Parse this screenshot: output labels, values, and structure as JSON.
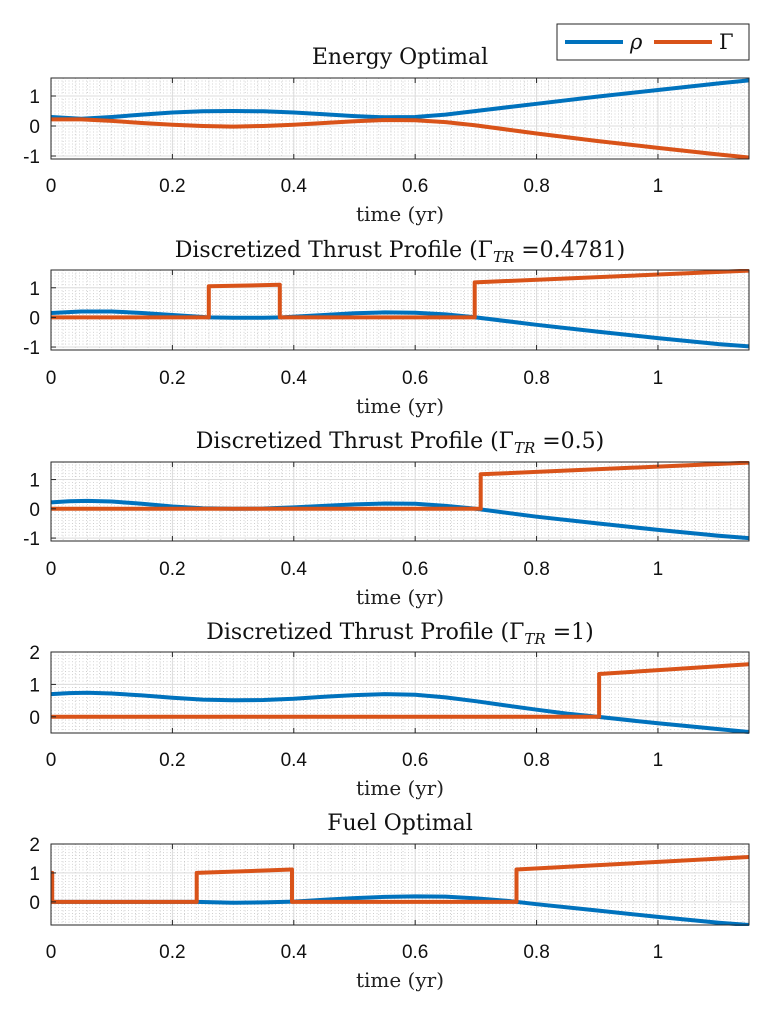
{
  "legend": {
    "entries": [
      {
        "label": "ρ",
        "color": "#0072BD"
      },
      {
        "label": "Γ",
        "color": "#D95319"
      }
    ]
  },
  "chart_data": [
    {
      "type": "line",
      "title": "Energy Optimal",
      "title_main": "Energy Optimal",
      "title_sub": "",
      "title_tail": "",
      "xlabel": "time (yr)",
      "xlim": [
        0,
        1.15
      ],
      "ylim": [
        -1.1,
        1.6
      ],
      "xticks": [
        0,
        0.2,
        0.4,
        0.6,
        0.8,
        1
      ],
      "xtick_labels": [
        "0",
        "0.2",
        "0.4",
        "0.6",
        "0.8",
        "1"
      ],
      "yticks": [
        -1,
        0,
        1
      ],
      "ytick_labels": [
        "-1",
        "0",
        "1"
      ],
      "series": [
        {
          "name": "ρ",
          "color": "#0072BD",
          "x": [
            0,
            0.05,
            0.1,
            0.15,
            0.2,
            0.25,
            0.3,
            0.35,
            0.4,
            0.45,
            0.5,
            0.55,
            0.6,
            0.65,
            0.7,
            0.8,
            0.9,
            1.0,
            1.1,
            1.15
          ],
          "y": [
            0.3,
            0.24,
            0.3,
            0.38,
            0.45,
            0.49,
            0.5,
            0.49,
            0.45,
            0.39,
            0.33,
            0.29,
            0.3,
            0.38,
            0.5,
            0.74,
            0.98,
            1.2,
            1.42,
            1.52
          ]
        },
        {
          "name": "Γ",
          "color": "#D95319",
          "x": [
            0,
            0.05,
            0.1,
            0.15,
            0.2,
            0.25,
            0.3,
            0.35,
            0.4,
            0.45,
            0.5,
            0.55,
            0.6,
            0.65,
            0.7,
            0.8,
            0.9,
            1.0,
            1.1,
            1.15
          ],
          "y": [
            0.22,
            0.22,
            0.17,
            0.1,
            0.04,
            0.0,
            -0.02,
            0.0,
            0.04,
            0.1,
            0.16,
            0.2,
            0.19,
            0.13,
            0.02,
            -0.25,
            -0.5,
            -0.73,
            -0.95,
            -1.05
          ]
        }
      ]
    },
    {
      "type": "line",
      "title": "Discretized Thrust Profile (ΓTR =0.4781)",
      "title_main": "Discretized Thrust Profile (Γ",
      "title_sub": "TR",
      "title_tail": " =0.4781)",
      "xlabel": "time (yr)",
      "xlim": [
        0,
        1.15
      ],
      "ylim": [
        -1.1,
        1.6
      ],
      "xticks": [
        0,
        0.2,
        0.4,
        0.6,
        0.8,
        1
      ],
      "xtick_labels": [
        "0",
        "0.2",
        "0.4",
        "0.6",
        "0.8",
        "1"
      ],
      "yticks": [
        -1,
        0,
        1
      ],
      "ytick_labels": [
        "-1",
        "0",
        "1"
      ],
      "series": [
        {
          "name": "ρ",
          "color": "#0072BD",
          "x": [
            0,
            0.05,
            0.1,
            0.15,
            0.2,
            0.26,
            0.3,
            0.35,
            0.38,
            0.45,
            0.5,
            0.55,
            0.6,
            0.65,
            0.7,
            0.8,
            0.9,
            1.0,
            1.1,
            1.15
          ],
          "y": [
            0.15,
            0.2,
            0.2,
            0.15,
            0.08,
            0.0,
            -0.01,
            -0.01,
            0.0,
            0.08,
            0.14,
            0.17,
            0.16,
            0.1,
            0.0,
            -0.25,
            -0.48,
            -0.7,
            -0.9,
            -0.98
          ]
        },
        {
          "name": "Γ",
          "color": "#D95319",
          "x": [
            0,
            0.26,
            0.26,
            0.377,
            0.377,
            0.698,
            0.698,
            1.15
          ],
          "y": [
            0,
            0,
            1.05,
            1.1,
            0,
            0,
            1.18,
            1.58
          ]
        }
      ]
    },
    {
      "type": "line",
      "title": "Discretized Thrust Profile (ΓTR =0.5)",
      "title_main": "Discretized Thrust Profile (Γ",
      "title_sub": "TR",
      "title_tail": " =0.5)",
      "xlabel": "time (yr)",
      "xlim": [
        0,
        1.15
      ],
      "ylim": [
        -1.1,
        1.6
      ],
      "xticks": [
        0,
        0.2,
        0.4,
        0.6,
        0.8,
        1
      ],
      "xtick_labels": [
        "0",
        "0.2",
        "0.4",
        "0.6",
        "0.8",
        "1"
      ],
      "yticks": [
        -1,
        0,
        1
      ],
      "ytick_labels": [
        "-1",
        "0",
        "1"
      ],
      "series": [
        {
          "name": "ρ",
          "color": "#0072BD",
          "x": [
            0,
            0.03,
            0.06,
            0.1,
            0.15,
            0.2,
            0.25,
            0.3,
            0.35,
            0.4,
            0.45,
            0.5,
            0.55,
            0.6,
            0.65,
            0.7,
            0.8,
            0.9,
            1.0,
            1.1,
            1.15
          ],
          "y": [
            0.22,
            0.26,
            0.27,
            0.25,
            0.17,
            0.08,
            0.02,
            0.0,
            0.01,
            0.05,
            0.1,
            0.15,
            0.18,
            0.17,
            0.1,
            0.0,
            -0.27,
            -0.5,
            -0.72,
            -0.92,
            -1.0
          ]
        },
        {
          "name": "Γ",
          "color": "#D95319",
          "x": [
            0,
            0.708,
            0.708,
            1.15
          ],
          "y": [
            0,
            0,
            1.18,
            1.58
          ]
        }
      ]
    },
    {
      "type": "line",
      "title": "Discretized Thrust Profile (ΓTR =1)",
      "title_main": "Discretized Thrust Profile (Γ",
      "title_sub": "TR",
      "title_tail": " =1)",
      "xlabel": "time (yr)",
      "xlim": [
        0,
        1.15
      ],
      "ylim": [
        -0.5,
        2.0
      ],
      "xticks": [
        0,
        0.2,
        0.4,
        0.6,
        0.8,
        1
      ],
      "xtick_labels": [
        "0",
        "0.2",
        "0.4",
        "0.6",
        "0.8",
        "1"
      ],
      "yticks": [
        0,
        1,
        2
      ],
      "ytick_labels": [
        "0",
        "1",
        "2"
      ],
      "series": [
        {
          "name": "ρ",
          "color": "#0072BD",
          "x": [
            0,
            0.03,
            0.06,
            0.1,
            0.15,
            0.2,
            0.25,
            0.3,
            0.35,
            0.4,
            0.45,
            0.5,
            0.55,
            0.6,
            0.65,
            0.7,
            0.75,
            0.8,
            0.85,
            0.9,
            1.0,
            1.1,
            1.15
          ],
          "y": [
            0.7,
            0.73,
            0.74,
            0.72,
            0.66,
            0.59,
            0.53,
            0.51,
            0.52,
            0.56,
            0.62,
            0.67,
            0.7,
            0.68,
            0.6,
            0.48,
            0.35,
            0.22,
            0.1,
            0.0,
            -0.2,
            -0.38,
            -0.47
          ]
        },
        {
          "name": "Γ",
          "color": "#D95319",
          "x": [
            0,
            0.903,
            0.903,
            1.15
          ],
          "y": [
            0,
            0,
            1.32,
            1.62
          ]
        }
      ]
    },
    {
      "type": "line",
      "title": "Fuel Optimal",
      "title_main": "Fuel Optimal",
      "title_sub": "",
      "title_tail": "",
      "xlabel": "time (yr)",
      "xlim": [
        0,
        1.15
      ],
      "ylim": [
        -0.8,
        2.0
      ],
      "xticks": [
        0,
        0.2,
        0.4,
        0.6,
        0.8,
        1
      ],
      "xtick_labels": [
        "0",
        "0.2",
        "0.4",
        "0.6",
        "0.8",
        "1"
      ],
      "yticks": [
        0,
        1,
        2
      ],
      "ytick_labels": [
        "0",
        "1",
        "2"
      ],
      "series": [
        {
          "name": "ρ",
          "color": "#0072BD",
          "x": [
            0,
            0.05,
            0.1,
            0.15,
            0.2,
            0.24,
            0.3,
            0.35,
            0.4,
            0.45,
            0.5,
            0.55,
            0.6,
            0.65,
            0.7,
            0.75,
            0.8,
            0.9,
            1.0,
            1.1,
            1.15
          ],
          "y": [
            0.0,
            0.0,
            0.0,
            0.0,
            0.0,
            0.0,
            -0.03,
            -0.02,
            0.01,
            0.07,
            0.13,
            0.17,
            0.19,
            0.18,
            0.12,
            0.04,
            -0.08,
            -0.3,
            -0.52,
            -0.72,
            -0.8
          ]
        },
        {
          "name": "Γ",
          "color": "#D95319",
          "x": [
            0,
            0,
            0.002,
            0.002,
            0.24,
            0.24,
            0.397,
            0.397,
            0.767,
            0.767,
            1.15
          ],
          "y": [
            0,
            1.0,
            1.0,
            0,
            0,
            1.0,
            1.12,
            0,
            0,
            1.12,
            1.55
          ]
        }
      ]
    }
  ]
}
